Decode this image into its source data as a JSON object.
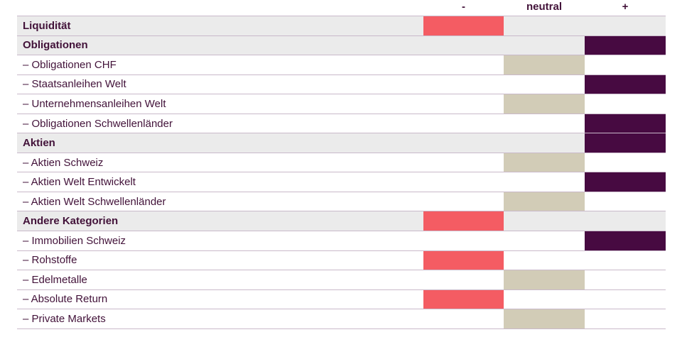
{
  "chart_data": {
    "type": "table",
    "title": "",
    "legend_position": "top",
    "columns": [
      {
        "id": "minus",
        "label": "-"
      },
      {
        "id": "neutral",
        "label": "neutral"
      },
      {
        "id": "plus",
        "label": "+"
      }
    ],
    "rows": [
      {
        "label": "Liquidität",
        "level": "category",
        "position": "minus"
      },
      {
        "label": "Obligationen",
        "level": "category",
        "position": "plus"
      },
      {
        "label": "– Obligationen CHF",
        "level": "sub",
        "position": "neutral"
      },
      {
        "label": "– Staatsanleihen Welt",
        "level": "sub",
        "position": "plus"
      },
      {
        "label": "– Unternehmensanleihen Welt",
        "level": "sub",
        "position": "neutral"
      },
      {
        "label": "– Obligationen Schwellenländer",
        "level": "sub",
        "position": "plus"
      },
      {
        "label": "Aktien",
        "level": "category",
        "position": "plus"
      },
      {
        "label": "– Aktien Schweiz",
        "level": "sub",
        "position": "neutral"
      },
      {
        "label": "– Aktien Welt Entwickelt",
        "level": "sub",
        "position": "plus"
      },
      {
        "label": "– Aktien Welt Schwellenländer",
        "level": "sub",
        "position": "neutral"
      },
      {
        "label": "Andere Kategorien",
        "level": "category",
        "position": "minus"
      },
      {
        "label": "– Immobilien Schweiz",
        "level": "sub",
        "position": "plus"
      },
      {
        "label": "– Rohstoffe",
        "level": "sub",
        "position": "minus"
      },
      {
        "label": "– Edelmetalle",
        "level": "sub",
        "position": "neutral"
      },
      {
        "label": "– Absolute Return",
        "level": "sub",
        "position": "minus"
      },
      {
        "label": "– Private Markets",
        "level": "sub",
        "position": "neutral"
      }
    ],
    "colors": {
      "minus": "#f45c63",
      "neutral": "#d2ccb7",
      "plus": "#470a41",
      "category_row_background": "#ebebeb",
      "text": "#421239",
      "separator": "#c9b9ca"
    }
  }
}
